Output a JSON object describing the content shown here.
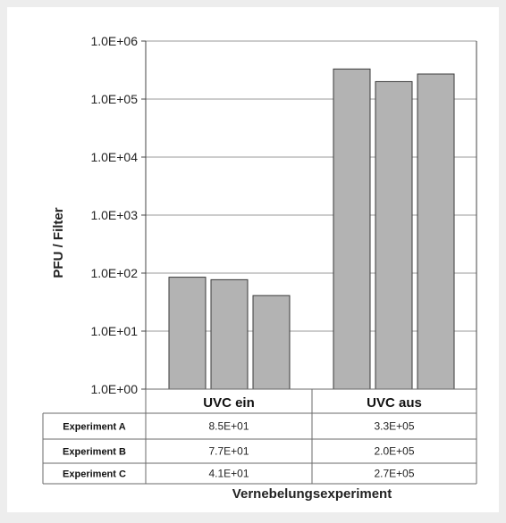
{
  "chart_data": {
    "type": "bar",
    "scale": "log",
    "ylabel": "PFU / Filter",
    "xlabel": "Vernebelungsexperiment",
    "ylim": [
      1,
      1000000
    ],
    "yticks": [
      "1.0E+00",
      "1.0E+01",
      "1.0E+02",
      "1.0E+03",
      "1.0E+04",
      "1.0E+05",
      "1.0E+06"
    ],
    "grid": true,
    "legend": "none",
    "categories": [
      "UVC ein",
      "UVC aus"
    ],
    "series": [
      {
        "name": "Experiment A",
        "values": [
          85,
          330000
        ],
        "labels": [
          "8.5E+01",
          "3.3E+05"
        ]
      },
      {
        "name": "Experiment B",
        "values": [
          77,
          200000
        ],
        "labels": [
          "7.7E+01",
          "2.0E+05"
        ]
      },
      {
        "name": "Experiment C",
        "values": [
          41,
          270000
        ],
        "labels": [
          "4.1E+01",
          "2.7E+05"
        ]
      }
    ],
    "bar_color": "#b3b3b3",
    "background_color": "#ffffff",
    "page_color": "#ededed"
  }
}
